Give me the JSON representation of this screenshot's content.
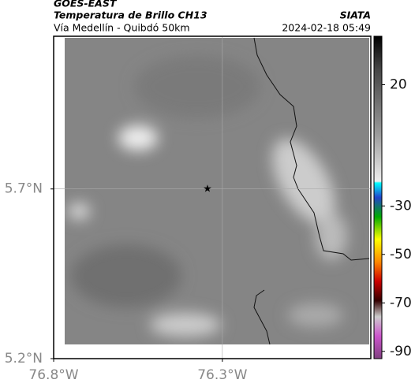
{
  "header": {
    "satellite": "GOES-EAST",
    "product": "Temperatura de Brillo CH13",
    "source": "SIATA",
    "region": "Vía Medellín - Quibdó 50km",
    "datetime": "2024-02-18 05:49"
  },
  "map": {
    "xlim": [
      -76.8,
      -75.86
    ],
    "ylim": [
      5.2,
      6.15
    ],
    "xticks": [
      {
        "value": -76.8,
        "label": "76.8°W"
      },
      {
        "value": -76.3,
        "label": "76.3°W"
      }
    ],
    "yticks": [
      {
        "value": 5.7,
        "label": "5.7°N"
      },
      {
        "value": 5.2,
        "label": "5.2°N"
      }
    ]
  },
  "colorbar": {
    "lim": [
      40,
      -93
    ],
    "ticks": [
      20,
      -30,
      -50,
      -70,
      -90
    ]
  }
}
